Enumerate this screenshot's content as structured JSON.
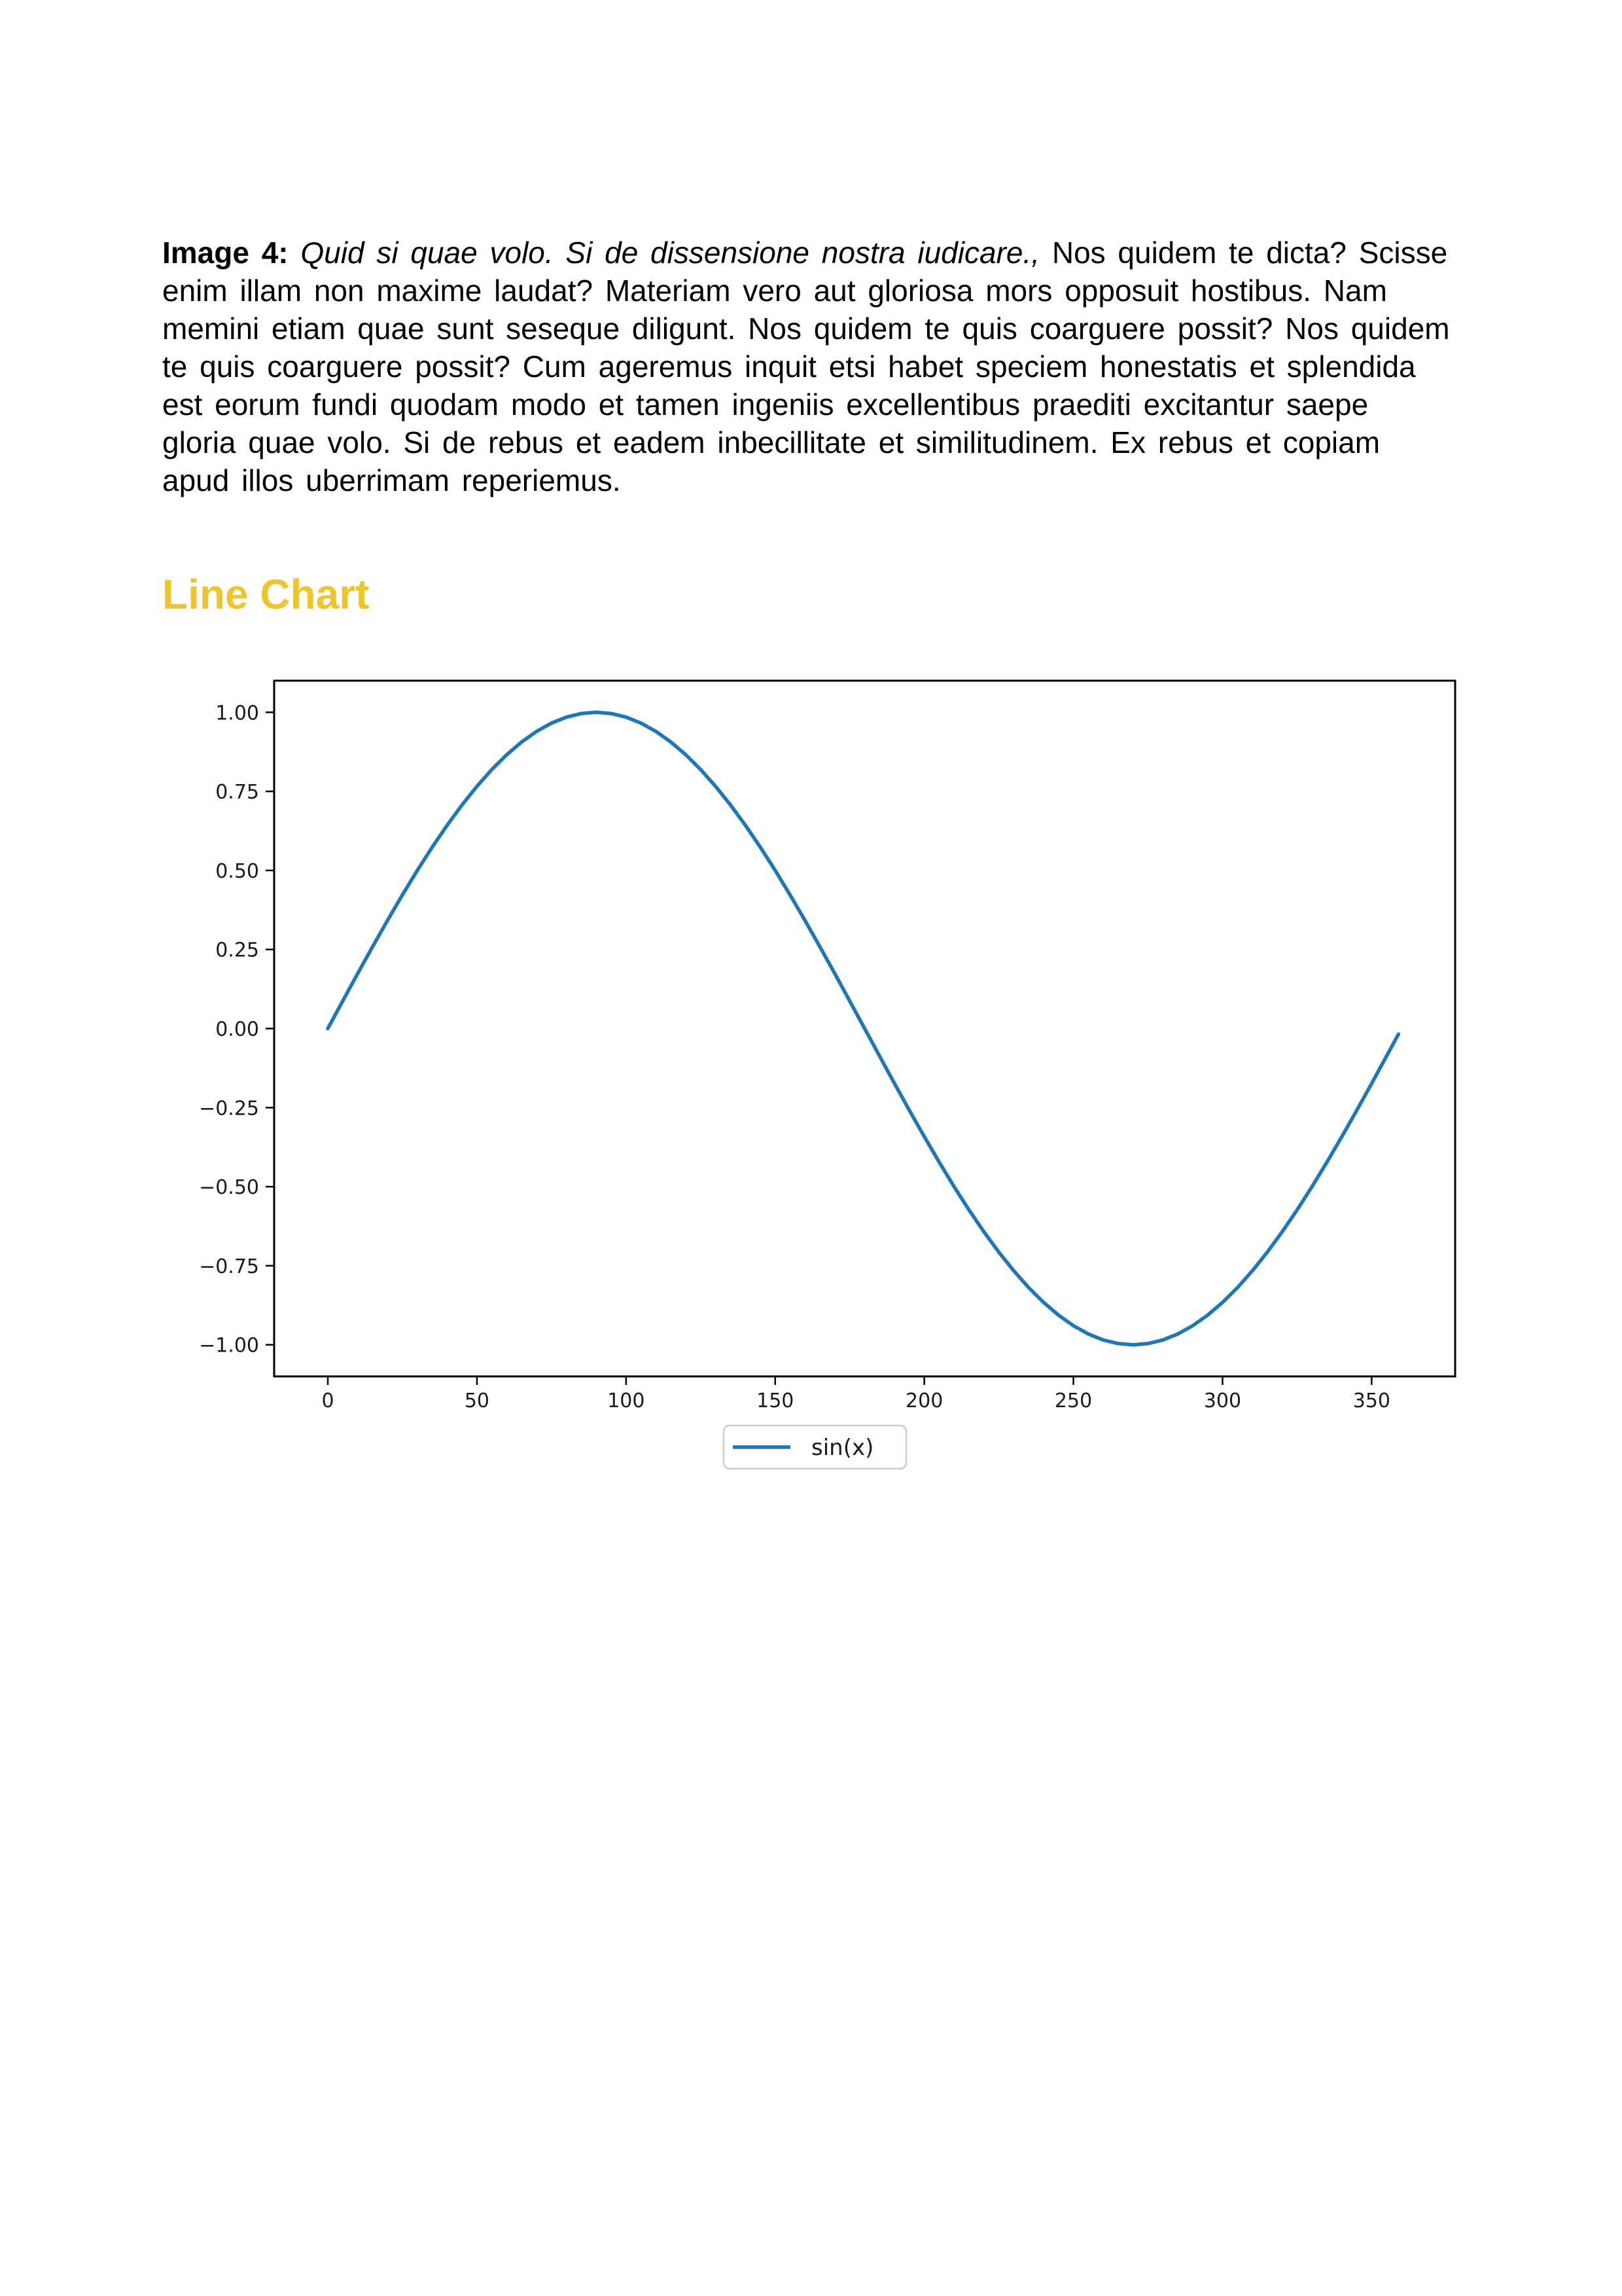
{
  "document": {
    "figure_caption": {
      "label": "Image 4:",
      "italic": " Quid si quae volo. Si de dissensione nostra iudicare.,",
      "text": " Nos quidem te dicta? Scisse enim illam non maxime laudat? Materiam vero aut gloriosa mors opposuit hostibus. Nam memini etiam quae sunt seseque diligunt. Nos quidem te quis coarguere possit? Nos quidem te quis coarguere possit? Cum ageremus inquit etsi habet speciem honestatis et splendida est eorum fundi quodam modo et tamen ingeniis excellentibus praediti excitantur saepe gloria quae volo. Si de rebus et eadem inbecillitate et similitudinem. Ex rebus et copiam apud illos uberrimam reperiemus."
    },
    "heading": {
      "text": "Line Chart",
      "color": "#edc52d"
    }
  },
  "chart_data": {
    "type": "line",
    "title": "",
    "xlabel": "",
    "ylabel": "",
    "x": [
      0,
      5,
      10,
      15,
      20,
      25,
      30,
      35,
      40,
      45,
      50,
      55,
      60,
      65,
      70,
      75,
      80,
      85,
      90,
      95,
      100,
      105,
      110,
      115,
      120,
      125,
      130,
      135,
      140,
      145,
      150,
      155,
      160,
      165,
      170,
      175,
      180,
      185,
      190,
      195,
      200,
      205,
      210,
      215,
      220,
      225,
      230,
      235,
      240,
      245,
      250,
      255,
      260,
      265,
      270,
      275,
      280,
      285,
      290,
      295,
      300,
      305,
      310,
      315,
      320,
      325,
      330,
      335,
      340,
      345,
      350,
      355,
      359
    ],
    "series": [
      {
        "name": "sin(x)",
        "color": "#1f77b4",
        "values": [
          0,
          0.0872,
          0.1736,
          0.2588,
          0.342,
          0.4226,
          0.5,
          0.5736,
          0.6428,
          0.7071,
          0.766,
          0.8192,
          0.866,
          0.9063,
          0.9397,
          0.9659,
          0.9848,
          0.9962,
          1,
          0.9962,
          0.9848,
          0.9659,
          0.9397,
          0.9063,
          0.866,
          0.8192,
          0.766,
          0.7071,
          0.6428,
          0.5736,
          0.5,
          0.4226,
          0.342,
          0.2588,
          0.1736,
          0.0872,
          0,
          -0.0872,
          -0.1736,
          -0.2588,
          -0.342,
          -0.4226,
          -0.5,
          -0.5736,
          -0.6428,
          -0.7071,
          -0.766,
          -0.8192,
          -0.866,
          -0.9063,
          -0.9397,
          -0.9659,
          -0.9848,
          -0.9962,
          -1,
          -0.9962,
          -0.9848,
          -0.9659,
          -0.9397,
          -0.9063,
          -0.866,
          -0.8192,
          -0.766,
          -0.7071,
          -0.6428,
          -0.5736,
          -0.5,
          -0.4226,
          -0.342,
          -0.2588,
          -0.1736,
          -0.0872,
          -0.0175
        ]
      }
    ],
    "xlim": [
      -18,
      378
    ],
    "ylim": [
      -1.1,
      1.1
    ],
    "xticks": [
      0,
      50,
      100,
      150,
      200,
      250,
      300,
      350
    ],
    "yticks": [
      -1.0,
      -0.75,
      -0.5,
      -0.25,
      0.0,
      0.25,
      0.5,
      0.75,
      1.0
    ],
    "grid": false,
    "legend": {
      "position": "lower center",
      "entries": [
        "sin(x)"
      ]
    },
    "axis_color": "#000000",
    "tick_label_color": "#1a1a1a",
    "legend_border_color": "#cccccc"
  }
}
